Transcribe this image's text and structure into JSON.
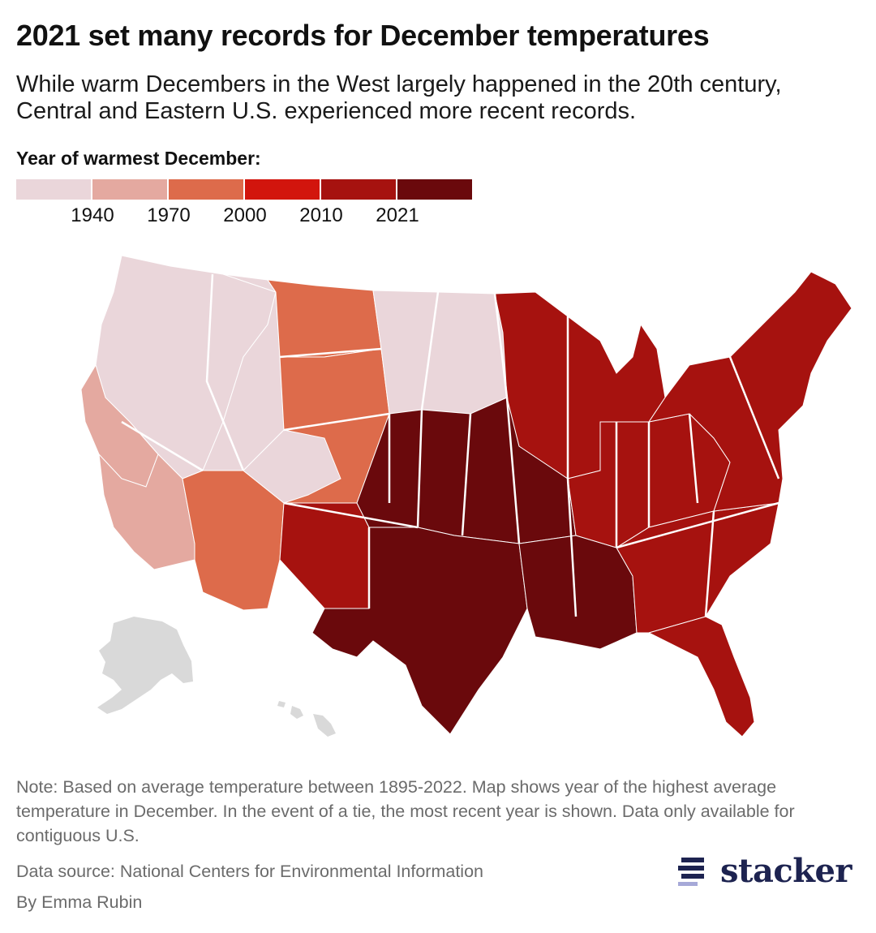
{
  "header": {
    "title": "2021 set many records for December temperatures",
    "subtitle": "While warm Decembers in the West largely happened in the 20th century, Central and Eastern U.S. experienced more recent records."
  },
  "legend": {
    "title": "Year of warmest December:",
    "bins": [
      {
        "color": "#ead6da"
      },
      {
        "color": "#e4a9a0"
      },
      {
        "color": "#dd6b4b"
      },
      {
        "color": "#d2150d"
      },
      {
        "color": "#a6120f"
      },
      {
        "color": "#6a090c"
      }
    ],
    "breaks": [
      "1940",
      "1970",
      "2000",
      "2010",
      "2021"
    ]
  },
  "map": {
    "regions": [
      {
        "name": "Pacific Northwest",
        "bin": 0
      },
      {
        "name": "Northern California coast",
        "bin": 1
      },
      {
        "name": "Nevada / Idaho",
        "bin": 0
      },
      {
        "name": "Southern California",
        "bin": 1
      },
      {
        "name": "Arizona",
        "bin": 2
      },
      {
        "name": "Montana",
        "bin": 2
      },
      {
        "name": "Wyoming / Colorado",
        "bin": 2
      },
      {
        "name": "Utah",
        "bin": 0
      },
      {
        "name": "Dakotas",
        "bin": 0
      },
      {
        "name": "New Mexico",
        "bin": 4
      },
      {
        "name": "Great Plains",
        "bin": 5
      },
      {
        "name": "Texas",
        "bin": 5
      },
      {
        "name": "Lower Mississippi",
        "bin": 5
      },
      {
        "name": "Upper Midwest",
        "bin": 4
      },
      {
        "name": "Ohio Valley",
        "bin": 4
      },
      {
        "name": "Southeast",
        "bin": 4
      },
      {
        "name": "Northeast",
        "bin": 4
      },
      {
        "name": "Florida",
        "bin": 4
      }
    ],
    "no_data_color": "#d9d9d9"
  },
  "footer": {
    "note": "Note: Based on average temperature between 1895-2022. Map shows year of the highest average temperature in December. In the event of a tie, the most recent year is shown. Data only available for contiguous U.S.",
    "source": "Data source: National Centers for Environmental Information",
    "byline": "By Emma Rubin",
    "logo_text": "stacker",
    "logo_color": "#1d2350"
  }
}
